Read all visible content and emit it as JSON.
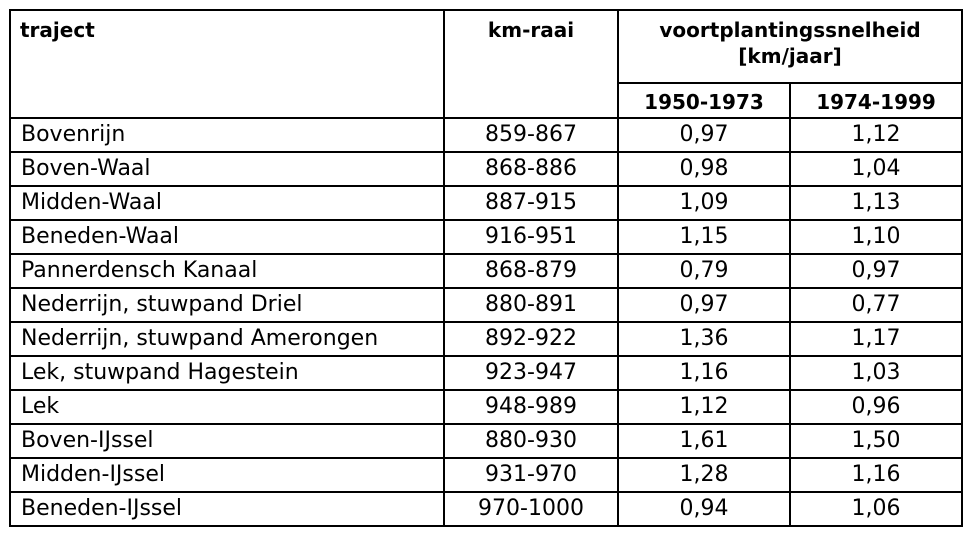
{
  "table": {
    "headers": {
      "traject": "traject",
      "km_raai": "km-raai",
      "speed_line1": "voortplantingssnelheid",
      "speed_line2": "[km/jaar]",
      "period1": "1950-1973",
      "period2": "1974-1999"
    },
    "rows": [
      {
        "traject": "Bovenrijn",
        "km_raai": "859-867",
        "v1950_1973": "0,97",
        "v1974_1999": "1,12"
      },
      {
        "traject": "Boven-Waal",
        "km_raai": "868-886",
        "v1950_1973": "0,98",
        "v1974_1999": "1,04"
      },
      {
        "traject": "Midden-Waal",
        "km_raai": "887-915",
        "v1950_1973": "1,09",
        "v1974_1999": "1,13"
      },
      {
        "traject": "Beneden-Waal",
        "km_raai": "916-951",
        "v1950_1973": "1,15",
        "v1974_1999": "1,10"
      },
      {
        "traject": "Pannerdensch Kanaal",
        "km_raai": "868-879",
        "v1950_1973": "0,79",
        "v1974_1999": "0,97"
      },
      {
        "traject": "Nederrijn, stuwpand Driel",
        "km_raai": "880-891",
        "v1950_1973": "0,97",
        "v1974_1999": "0,77"
      },
      {
        "traject": "Nederrijn, stuwpand Amerongen",
        "km_raai": "892-922",
        "v1950_1973": "1,36",
        "v1974_1999": "1,17"
      },
      {
        "traject": "Lek, stuwpand Hagestein",
        "km_raai": "923-947",
        "v1950_1973": "1,16",
        "v1974_1999": "1,03"
      },
      {
        "traject": "Lek",
        "km_raai": "948-989",
        "v1950_1973": "1,12",
        "v1974_1999": "0,96"
      },
      {
        "traject": "Boven-IJssel",
        "km_raai": "880-930",
        "v1950_1973": "1,61",
        "v1974_1999": "1,50"
      },
      {
        "traject": "Midden-IJssel",
        "km_raai": "931-970",
        "v1950_1973": "1,28",
        "v1974_1999": "1,16"
      },
      {
        "traject": "Beneden-IJssel",
        "km_raai": "970-1000",
        "v1950_1973": "0,94",
        "v1974_1999": "1,06"
      }
    ]
  }
}
